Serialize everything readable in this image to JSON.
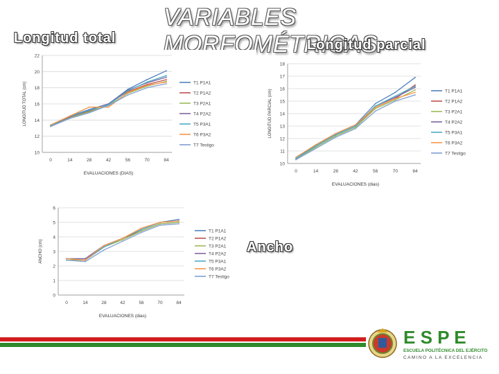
{
  "slide": {
    "title": "VARIABLES MORFOMÉTRICAS",
    "label_total": "Longitud total",
    "label_parcial": "Longitud parcial",
    "label_ancho": "Ancho"
  },
  "logo": {
    "name": "E S P E",
    "subtitle": "ESCUELA POLITÉCNICA DEL EJÉRCITO",
    "tagline": "CAMINO A LA EXCELENCIA"
  },
  "colors": {
    "red_bar": "#d21d1d",
    "green_bar": "#2f8a2b",
    "logo_green": "#2f8a2b"
  },
  "chart_data": [
    {
      "id": "total",
      "type": "line",
      "xlabel": "EVALUACIONES (DIAS)",
      "ylabel": "LONGITUD TOTAL (cm)",
      "x": [
        "0",
        "14",
        "28",
        "42",
        "56",
        "70",
        "84"
      ],
      "ylim": [
        10,
        22
      ],
      "yticks": [
        "10",
        "12",
        "14",
        "16",
        "18",
        "20",
        "22"
      ],
      "legend": "right",
      "series": [
        {
          "name": "T1 P1A1",
          "color": "#4f81bd",
          "values": [
            13.3,
            14.5,
            15.3,
            16.0,
            17.8,
            19.0,
            20.1
          ]
        },
        {
          "name": "T2 P1A2",
          "color": "#c0504d",
          "values": [
            13.3,
            14.4,
            15.1,
            16.0,
            17.5,
            18.4,
            19.0
          ]
        },
        {
          "name": "T3 P2A1",
          "color": "#9bbb59",
          "values": [
            13.2,
            14.3,
            15.0,
            15.8,
            17.3,
            18.2,
            18.8
          ]
        },
        {
          "name": "T4 P2A2",
          "color": "#8064a2",
          "values": [
            13.3,
            14.4,
            15.2,
            16.0,
            17.7,
            18.6,
            19.3
          ]
        },
        {
          "name": "T5 P3A1",
          "color": "#4bacc6",
          "values": [
            13.3,
            14.5,
            15.2,
            15.9,
            17.6,
            18.7,
            19.5
          ]
        },
        {
          "name": "T6 P3A2",
          "color": "#f79646",
          "values": [
            13.4,
            14.5,
            15.6,
            15.6,
            17.4,
            18.3,
            18.7
          ]
        },
        {
          "name": "T7 Testigo",
          "color": "#7f9fd0",
          "values": [
            13.2,
            14.2,
            14.9,
            15.8,
            17.1,
            18.0,
            18.5
          ]
        }
      ]
    },
    {
      "id": "parcial",
      "type": "line",
      "xlabel": "EVALUACIONES (dias)",
      "ylabel": "LONGITUD PARCIAL (cm)",
      "x": [
        "0",
        "14",
        "28",
        "42",
        "56",
        "70",
        "84"
      ],
      "ylim": [
        10,
        18
      ],
      "yticks": [
        "10",
        "11",
        "12",
        "13",
        "14",
        "15",
        "16",
        "17",
        "18"
      ],
      "legend": "right",
      "series": [
        {
          "name": "T1 P1A1",
          "color": "#4f81bd",
          "values": [
            10.4,
            11.5,
            12.4,
            13.1,
            14.8,
            15.7,
            16.9
          ]
        },
        {
          "name": "T2 P1A2",
          "color": "#c0504d",
          "values": [
            10.4,
            11.4,
            12.3,
            13.0,
            14.5,
            15.2,
            16.3
          ]
        },
        {
          "name": "T3 P2A1",
          "color": "#9bbb59",
          "values": [
            10.3,
            11.3,
            12.2,
            12.9,
            14.4,
            15.1,
            15.9
          ]
        },
        {
          "name": "T4 P2A2",
          "color": "#8064a2",
          "values": [
            10.4,
            11.4,
            12.3,
            13.0,
            14.6,
            15.3,
            16.1
          ]
        },
        {
          "name": "T5 P3A1",
          "color": "#4bacc6",
          "values": [
            10.4,
            11.4,
            12.3,
            13.0,
            14.6,
            15.4,
            16.2
          ]
        },
        {
          "name": "T6 P3A2",
          "color": "#f79646",
          "values": [
            10.5,
            11.5,
            12.4,
            13.1,
            14.5,
            15.2,
            15.7
          ]
        },
        {
          "name": "T7 Testigo",
          "color": "#7f9fd0",
          "values": [
            10.3,
            11.2,
            12.1,
            12.8,
            14.2,
            15.0,
            15.5
          ]
        }
      ]
    },
    {
      "id": "ancho",
      "type": "line",
      "xlabel": "EVALUACIONES (dias)",
      "ylabel": "ANCHO (cm)",
      "x": [
        "0",
        "14",
        "28",
        "42",
        "56",
        "70",
        "84"
      ],
      "ylim": [
        0,
        6
      ],
      "yticks": [
        "0",
        "1",
        "2",
        "3",
        "4",
        "5",
        "6"
      ],
      "legend": "right",
      "series": [
        {
          "name": "T1 P1A1",
          "color": "#4f81bd",
          "values": [
            2.5,
            2.5,
            3.4,
            3.9,
            4.5,
            5.0,
            5.2
          ]
        },
        {
          "name": "T2 P1A2",
          "color": "#c0504d",
          "values": [
            2.5,
            2.4,
            3.3,
            3.9,
            4.4,
            4.9,
            5.0
          ]
        },
        {
          "name": "T3 P2A1",
          "color": "#9bbb59",
          "values": [
            2.4,
            2.4,
            3.3,
            3.8,
            4.4,
            4.9,
            5.0
          ]
        },
        {
          "name": "T4 P2A2",
          "color": "#8064a2",
          "values": [
            2.5,
            2.5,
            3.4,
            3.9,
            4.5,
            5.0,
            5.1
          ]
        },
        {
          "name": "T5 P3A1",
          "color": "#4bacc6",
          "values": [
            2.5,
            2.4,
            3.3,
            3.9,
            4.5,
            5.0,
            5.1
          ]
        },
        {
          "name": "T6 P3A2",
          "color": "#f79646",
          "values": [
            2.5,
            2.4,
            3.4,
            3.9,
            4.6,
            5.0,
            5.1
          ]
        },
        {
          "name": "T7 Testigo",
          "color": "#7f9fd0",
          "values": [
            2.4,
            2.3,
            3.1,
            3.7,
            4.3,
            4.8,
            4.9
          ]
        }
      ]
    }
  ]
}
